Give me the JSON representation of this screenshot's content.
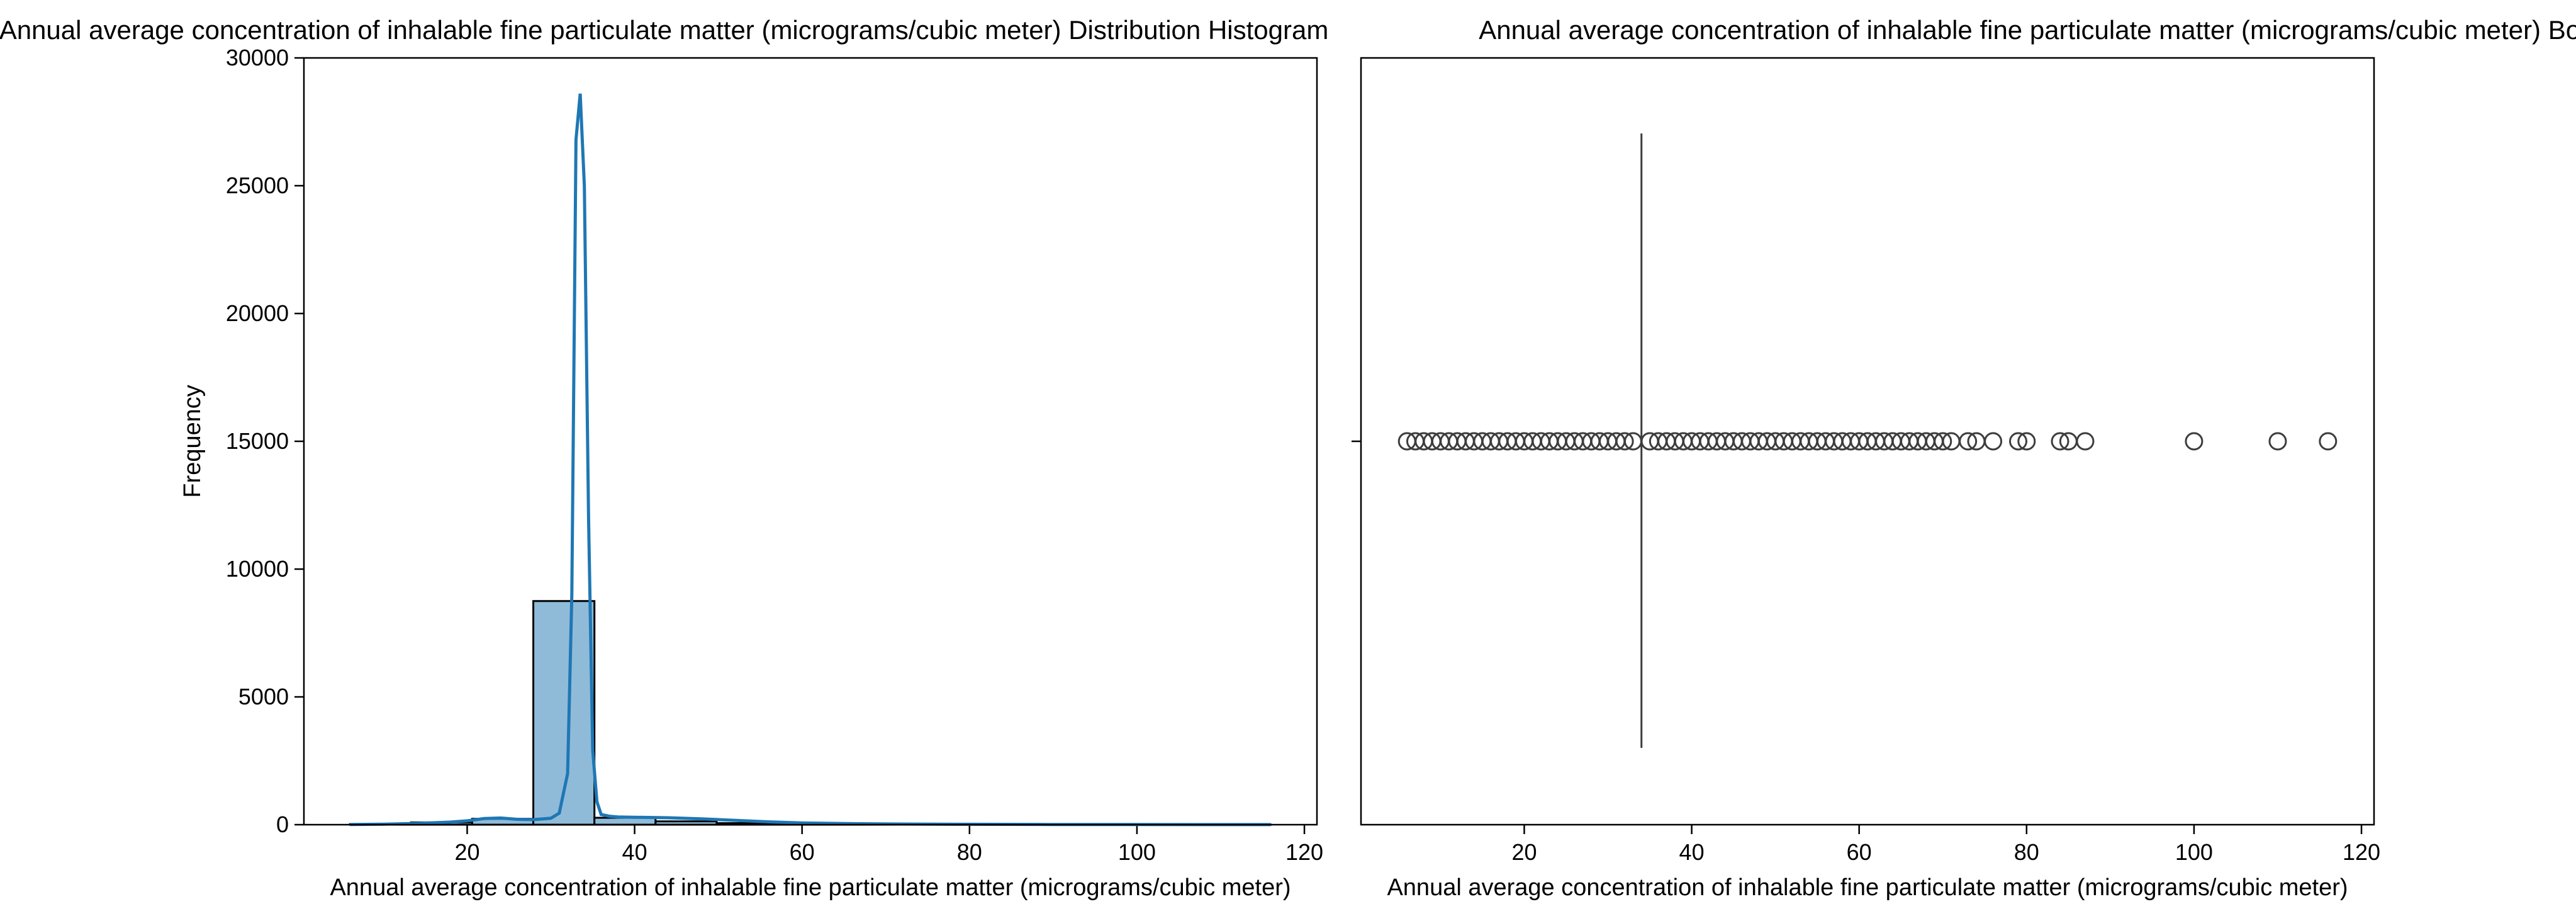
{
  "chart_data": [
    {
      "type": "histogram",
      "title": "Annual average concentration of inhalable fine particulate matter (micrograms/cubic meter) Distribution Histogram",
      "xlabel": "Annual average concentration of inhalable fine particulate matter (micrograms/cubic meter)",
      "ylabel": "Frequency",
      "xlim": [
        0.5,
        121.5
      ],
      "ylim": [
        0,
        30000
      ],
      "xticks": [
        20,
        40,
        60,
        80,
        100,
        120
      ],
      "yticks": [
        0,
        5000,
        10000,
        15000,
        20000,
        25000,
        30000
      ],
      "bars": [
        {
          "x0": 6,
          "x1": 13.3,
          "value": 20
        },
        {
          "x0": 13.3,
          "x1": 20.6,
          "value": 90
        },
        {
          "x0": 20.6,
          "x1": 27.9,
          "value": 230
        },
        {
          "x0": 27.9,
          "x1": 35.2,
          "value": 8750
        },
        {
          "x0": 35.2,
          "x1": 42.5,
          "value": 270
        },
        {
          "x0": 42.5,
          "x1": 49.8,
          "value": 130
        },
        {
          "x0": 49.8,
          "x1": 57.1,
          "value": 60
        },
        {
          "x0": 57.1,
          "x1": 64.4,
          "value": 30
        },
        {
          "x0": 64.4,
          "x1": 71.7,
          "value": 10
        },
        {
          "x0": 71.7,
          "x1": 79.0,
          "value": 5
        },
        {
          "x0": 79.0,
          "x1": 86.3,
          "value": 4
        },
        {
          "x0": 86.3,
          "x1": 93.6,
          "value": 1
        },
        {
          "x0": 93.6,
          "x1": 100.9,
          "value": 1
        },
        {
          "x0": 100.9,
          "x1": 108.2,
          "value": 1
        },
        {
          "x0": 108.2,
          "x1": 116,
          "value": 2
        }
      ],
      "kde": {
        "x": [
          6,
          10,
          14,
          18,
          20,
          22,
          24,
          26,
          28,
          30,
          31,
          32,
          32.5,
          33,
          33.5,
          34,
          34.5,
          35,
          35.5,
          36,
          37,
          38,
          40,
          44,
          48,
          52,
          56,
          60,
          66,
          72,
          80,
          90,
          100,
          116
        ],
        "y": [
          5,
          20,
          50,
          100,
          150,
          240,
          260,
          210,
          200,
          250,
          450,
          2000,
          9000,
          26800,
          28600,
          25000,
          12000,
          2900,
          900,
          400,
          330,
          300,
          290,
          270,
          230,
          170,
          110,
          70,
          40,
          25,
          15,
          8,
          4,
          2
        ]
      }
    },
    {
      "type": "boxplot",
      "title": "Annual average concentration of inhalable fine particulate matter (micrograms/cubic meter) Boxplot",
      "xlabel": "Annual average concentration of inhalable fine particulate matter (micrograms/cubic meter)",
      "xlim": [
        0.5,
        121.5
      ],
      "xticks": [
        20,
        40,
        60,
        80,
        100,
        120
      ],
      "median": 34,
      "q1": 34,
      "q3": 34,
      "outliers": [
        6,
        7,
        8,
        9,
        10,
        11,
        12,
        13,
        14,
        15,
        16,
        17,
        18,
        19,
        20,
        21,
        22,
        23,
        24,
        25,
        26,
        27,
        28,
        29,
        30,
        31,
        32,
        33,
        35,
        36,
        37,
        38,
        39,
        40,
        41,
        42,
        43,
        44,
        45,
        46,
        47,
        48,
        49,
        50,
        51,
        52,
        53,
        54,
        55,
        56,
        57,
        58,
        59,
        60,
        61,
        62,
        63,
        64,
        65,
        66,
        67,
        68,
        69,
        70,
        71,
        73,
        74,
        76,
        79,
        80,
        84,
        85,
        87,
        100,
        110,
        116
      ]
    }
  ],
  "colors": {
    "bar_fill": "#8fbbd9",
    "bar_edge": "#000000",
    "kde_line": "#1f77b4",
    "box_line": "#3d3d3d"
  }
}
